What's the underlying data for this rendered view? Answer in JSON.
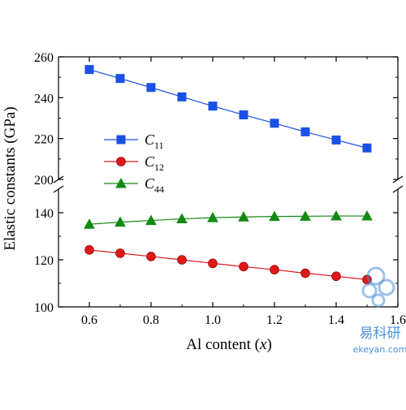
{
  "chart_data": {
    "type": "line",
    "title": "",
    "xlabel": {
      "main": "Al content (",
      "italic": "x",
      "end": ")"
    },
    "ylabel": "Elastic constants (GPa)",
    "x": [
      0.6,
      0.7,
      0.8,
      0.9,
      1.0,
      1.1,
      1.2,
      1.3,
      1.4,
      1.5
    ],
    "xlim": [
      0.5,
      1.6
    ],
    "xticks": [
      "0.6",
      "0.8",
      "1.0",
      "1.2",
      "1.4",
      "1.6"
    ],
    "y_axis_break": true,
    "y_upper_range": [
      200,
      260
    ],
    "y_upper_ticks": [
      "200",
      "220",
      "240",
      "260"
    ],
    "y_lower_range": [
      100,
      150
    ],
    "y_lower_ticks": [
      "100",
      "120",
      "140"
    ],
    "legend_position": "middle-left",
    "series": [
      {
        "name": "C11",
        "label_base": "C",
        "label_sub": "11",
        "color": "#1a50e6",
        "marker": "square",
        "panel": "upper",
        "values": [
          253.8,
          249.4,
          245.0,
          240.4,
          235.9,
          231.6,
          227.5,
          223.3,
          219.3,
          215.4
        ]
      },
      {
        "name": "C12",
        "label_base": "C",
        "label_sub": "12",
        "color": "#e01818",
        "marker": "circle",
        "panel": "lower",
        "values": [
          124.2,
          122.8,
          121.4,
          120.0,
          118.5,
          117.1,
          115.8,
          114.3,
          113.0,
          111.6
        ]
      },
      {
        "name": "C44",
        "label_base": "C",
        "label_sub": "44",
        "color": "#128a12",
        "marker": "triangle",
        "panel": "lower",
        "values": [
          135.1,
          136.0,
          136.7,
          137.4,
          137.9,
          138.2,
          138.4,
          138.5,
          138.6,
          138.6
        ]
      }
    ]
  },
  "watermark": {
    "chinese": "易科研",
    "site": "ekeyan.com",
    "color": "#4a90d9"
  }
}
